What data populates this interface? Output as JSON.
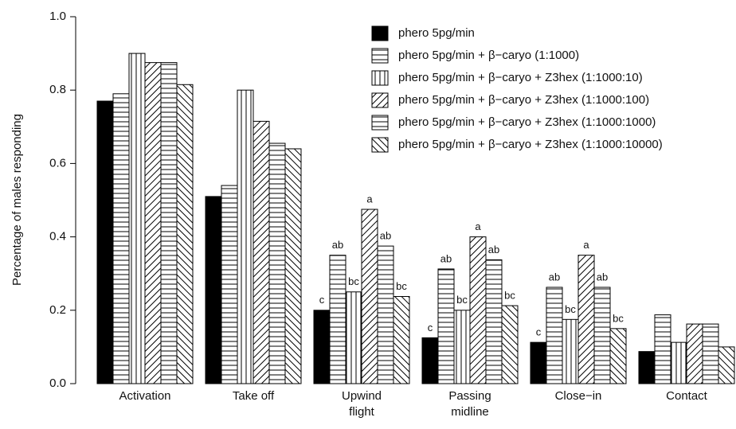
{
  "chart_data": {
    "type": "bar",
    "ylabel": "Percentage of males responding",
    "categories": [
      [
        "Activation"
      ],
      [
        "Take off"
      ],
      [
        "Upwind",
        "flight"
      ],
      [
        "Passing",
        "midline"
      ],
      [
        "Close−in"
      ],
      [
        "Contact"
      ]
    ],
    "ylim": [
      0,
      1
    ],
    "yticks": [
      {
        "value": 0,
        "label": "0.0"
      },
      {
        "value": 0.2,
        "label": "0.2"
      },
      {
        "value": 0.4,
        "label": "0.4"
      },
      {
        "value": 0.6,
        "label": "0.6"
      },
      {
        "value": 0.8,
        "label": "0.8"
      },
      {
        "value": 1,
        "label": "1.0"
      }
    ],
    "series": [
      {
        "name": "phero 5pg/min",
        "pattern": "solid",
        "values": [
          0.77,
          0.51,
          0.2,
          0.125,
          0.1125,
          0.0875
        ],
        "letters": [
          null,
          null,
          "c",
          "c",
          "c",
          null
        ]
      },
      {
        "name": "phero 5pg/min + β−caryo (1:1000)",
        "pattern": "horizontal",
        "values": [
          0.79,
          0.54,
          0.35,
          0.3125,
          0.2625,
          0.1875
        ],
        "letters": [
          null,
          null,
          "ab",
          "ab",
          "ab",
          null
        ]
      },
      {
        "name": "phero 5pg/min + β−caryo + Z3hex (1:1000:10)",
        "pattern": "vertical",
        "values": [
          0.9,
          0.8,
          0.25,
          0.2,
          0.175,
          0.1125
        ],
        "letters": [
          null,
          null,
          "bc",
          "bc",
          "bc",
          null
        ]
      },
      {
        "name": "phero 5pg/min + β−caryo + Z3hex (1:1000:100)",
        "pattern": "diagonal-up",
        "values": [
          0.875,
          0.715,
          0.475,
          0.4,
          0.35,
          0.1625
        ],
        "letters": [
          null,
          null,
          "a",
          "a",
          "a",
          null
        ]
      },
      {
        "name": "phero 5pg/min + β−caryo + Z3hex (1:1000:1000)",
        "pattern": "horizontal",
        "values": [
          0.875,
          0.655,
          0.375,
          0.3375,
          0.2625,
          0.1625
        ],
        "letters": [
          null,
          null,
          "ab",
          "ab",
          "ab",
          null
        ]
      },
      {
        "name": "phero 5pg/min + β−caryo + Z3hex (1:1000:10000)",
        "pattern": "diagonal-down",
        "values": [
          0.815,
          0.64,
          0.2375,
          0.2125,
          0.15,
          0.1
        ],
        "letters": [
          null,
          null,
          "bc",
          "bc",
          "bc",
          null
        ]
      }
    ]
  }
}
